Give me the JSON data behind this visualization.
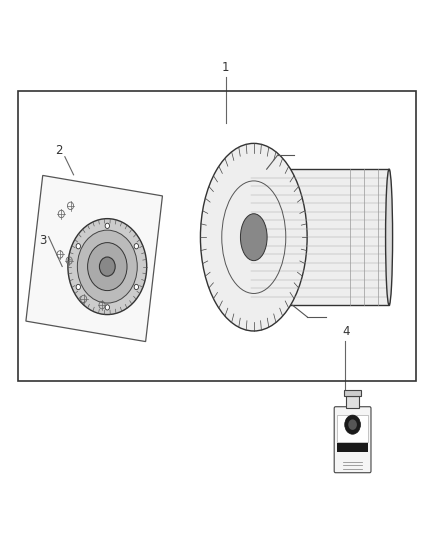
{
  "background_color": "#ffffff",
  "border_color": "#333333",
  "label_color": "#555555",
  "fig_width": 4.38,
  "fig_height": 5.33,
  "dpi": 100
}
